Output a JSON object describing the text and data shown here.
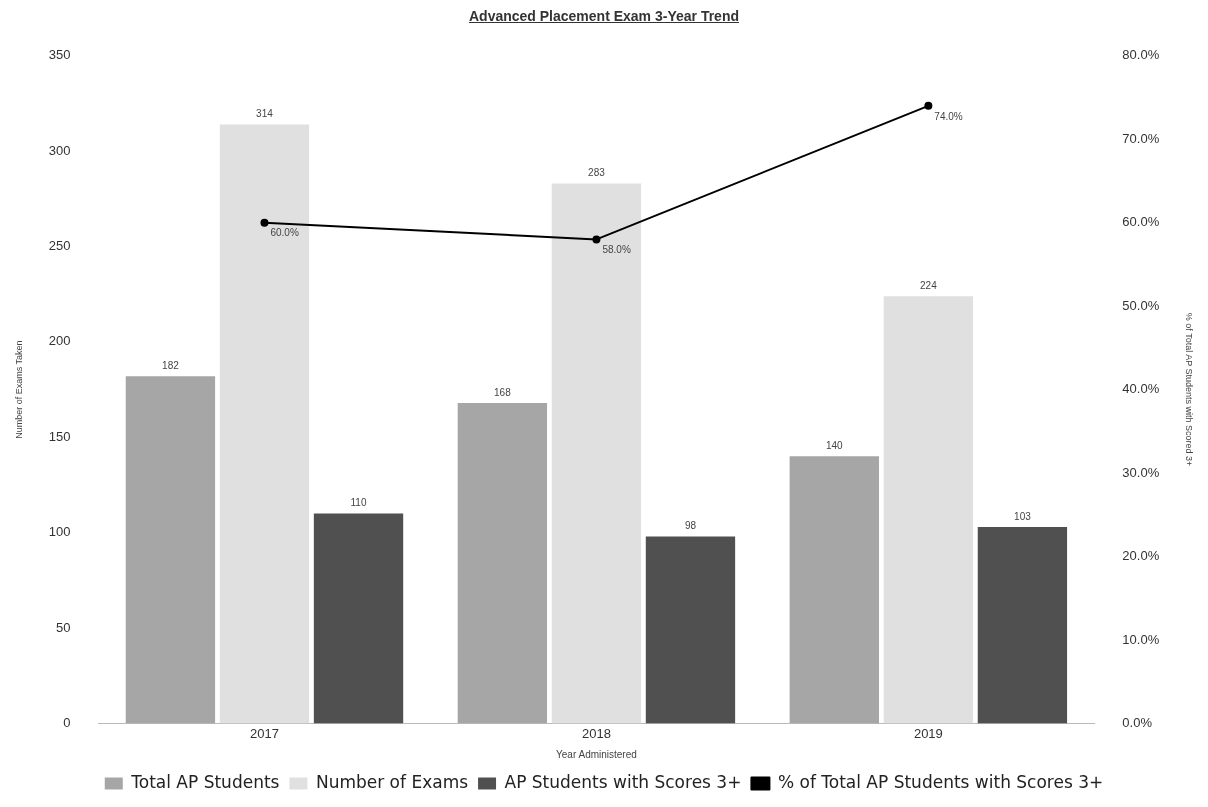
{
  "chart_data": {
    "type": "bar",
    "title": "Advanced Placement Exam 3-Year Trend",
    "xlabel": "Year Administered",
    "ylabel": "Number of Exams Taken",
    "y2label": "% of Total AP Students with Scored 3+",
    "categories": [
      "2017",
      "2018",
      "2019"
    ],
    "series": [
      {
        "name": "Total AP Students",
        "color": "#a6a6a6",
        "values": [
          182,
          168,
          140
        ],
        "value_labels": [
          "182",
          "168",
          "140"
        ]
      },
      {
        "name": "Number of Exams",
        "color": "#e0e0e0",
        "values": [
          314,
          283,
          224
        ],
        "value_labels": [
          "314",
          "283",
          "224"
        ]
      },
      {
        "name": "AP Students with Scores 3+",
        "color": "#505050",
        "values": [
          110,
          98,
          103
        ],
        "value_labels": [
          "110",
          "98",
          "103"
        ]
      },
      {
        "name": "% of Total AP Students with Scores 3+",
        "type": "line",
        "axis": "y2",
        "color": "#000000",
        "marker": "circle",
        "values": [
          60.0,
          58.0,
          74.0
        ],
        "value_labels": [
          "60.0%",
          "58.0%",
          "74.0%"
        ]
      }
    ],
    "ylim": [
      0,
      350
    ],
    "yticks": [
      0,
      50,
      100,
      150,
      200,
      250,
      300,
      350
    ],
    "y2lim": [
      0,
      80
    ],
    "y2ticks": [
      {
        "value": 0,
        "label": "0.0%"
      },
      {
        "value": 10,
        "label": "10.0%"
      },
      {
        "value": 20,
        "label": "20.0%"
      },
      {
        "value": 30,
        "label": "30.0%"
      },
      {
        "value": 40,
        "label": "40.0%"
      },
      {
        "value": 50,
        "label": "50.0%"
      },
      {
        "value": 60,
        "label": "60.0%"
      },
      {
        "value": 70,
        "label": "70.0%"
      },
      {
        "value": 80,
        "label": "80.0%"
      }
    ],
    "grid": false,
    "legend": "bottom"
  }
}
